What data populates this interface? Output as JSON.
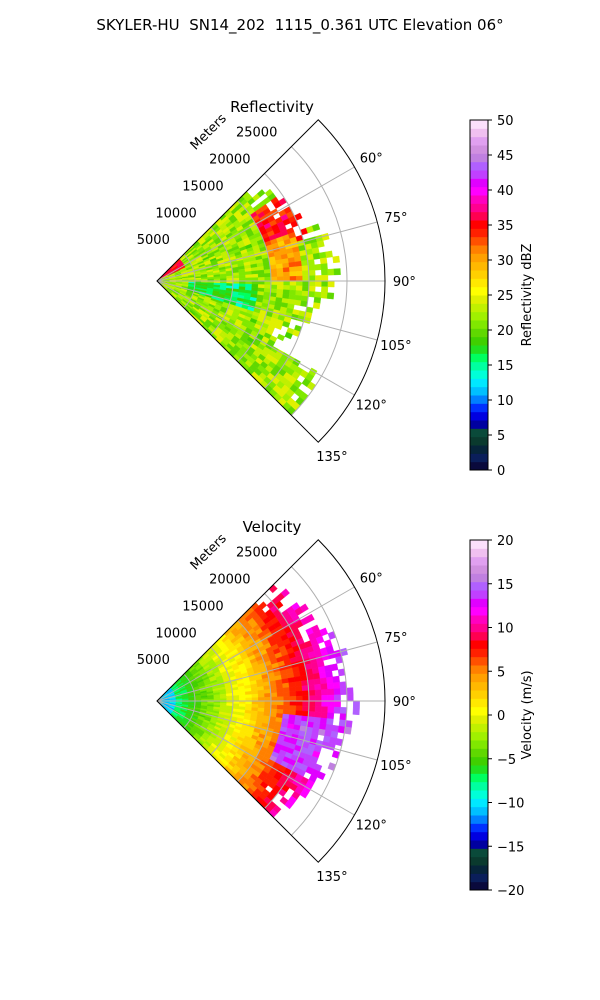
{
  "figure_title": "SKYLER-HU  SN14_202  1115_0.361 UTC Elevation 06°",
  "chart_data": [
    {
      "type": "polar_radar",
      "title": "Reflectivity",
      "radial_axis_label": "Meters",
      "range_ticks": [
        "5000",
        "10000",
        "15000",
        "20000",
        "25000"
      ],
      "range_max": 30000,
      "azimuth_range_deg": [
        45,
        135
      ],
      "azimuth_ticks": [
        "60°",
        "75°",
        "90°",
        "105°",
        "120°",
        "135°"
      ],
      "grid": true,
      "colorbar": {
        "label": "Reflectivity dBZ",
        "min": 0,
        "max": 50,
        "ticks": [
          "0",
          "5",
          "10",
          "15",
          "20",
          "25",
          "30",
          "35",
          "40",
          "45",
          "50"
        ],
        "colors": [
          "#0a0a3c",
          "#0a1e5a",
          "#06243a",
          "#0a3a2e",
          "#0a4a3a",
          "#0000a0",
          "#0000e0",
          "#0030ff",
          "#0080ff",
          "#00c0ff",
          "#00e8ff",
          "#00ffd8",
          "#00ffa0",
          "#00ff60",
          "#20e020",
          "#40d000",
          "#60d800",
          "#80e800",
          "#a0f000",
          "#c0f000",
          "#e0f000",
          "#ffff00",
          "#ffe800",
          "#ffd000",
          "#ffb800",
          "#ffa000",
          "#ff8000",
          "#ff5000",
          "#ff2000",
          "#ff0000",
          "#ff0050",
          "#ff0090",
          "#ff00c0",
          "#ff00ff",
          "#e000ff",
          "#c040ff",
          "#b060ff",
          "#c080e0",
          "#d090e0",
          "#e0a0f0",
          "#f0c0f0",
          "#fce0fc"
        ]
      },
      "field_description_colors": {
        "near_core": "#00e8c0",
        "mid": "#40d000",
        "outer": "#c0f000",
        "cells": "#ff2000"
      }
    },
    {
      "type": "polar_radar",
      "title": "Velocity",
      "radial_axis_label": "Meters",
      "range_ticks": [
        "5000",
        "10000",
        "15000",
        "20000",
        "25000"
      ],
      "range_max": 30000,
      "azimuth_range_deg": [
        45,
        135
      ],
      "azimuth_ticks": [
        "60°",
        "75°",
        "90°",
        "105°",
        "120°",
        "135°"
      ],
      "grid": true,
      "colorbar": {
        "label": "Velocity (m/s)",
        "min": -20,
        "max": 20,
        "ticks": [
          "−20",
          "−15",
          "−10",
          "−5",
          "0",
          "5",
          "10",
          "15",
          "20"
        ],
        "colors": [
          "#0a0a3c",
          "#0a1e5a",
          "#06243a",
          "#0a3a2e",
          "#0a4a3a",
          "#0000a0",
          "#0000e0",
          "#0030ff",
          "#0080ff",
          "#00c0ff",
          "#00e8ff",
          "#00ffd8",
          "#00ffa0",
          "#00ff60",
          "#20e020",
          "#40d000",
          "#60d800",
          "#80e800",
          "#a0f000",
          "#c0f000",
          "#e0f000",
          "#ffff00",
          "#ffe800",
          "#ffd000",
          "#ffb800",
          "#ffa000",
          "#ff8000",
          "#ff5000",
          "#ff2000",
          "#ff0000",
          "#ff0050",
          "#ff0090",
          "#ff00c0",
          "#ff00ff",
          "#e000ff",
          "#c040ff",
          "#b060ff",
          "#c080e0",
          "#d090e0",
          "#e0a0f0",
          "#f0c0f0",
          "#fce0fc"
        ]
      }
    }
  ]
}
